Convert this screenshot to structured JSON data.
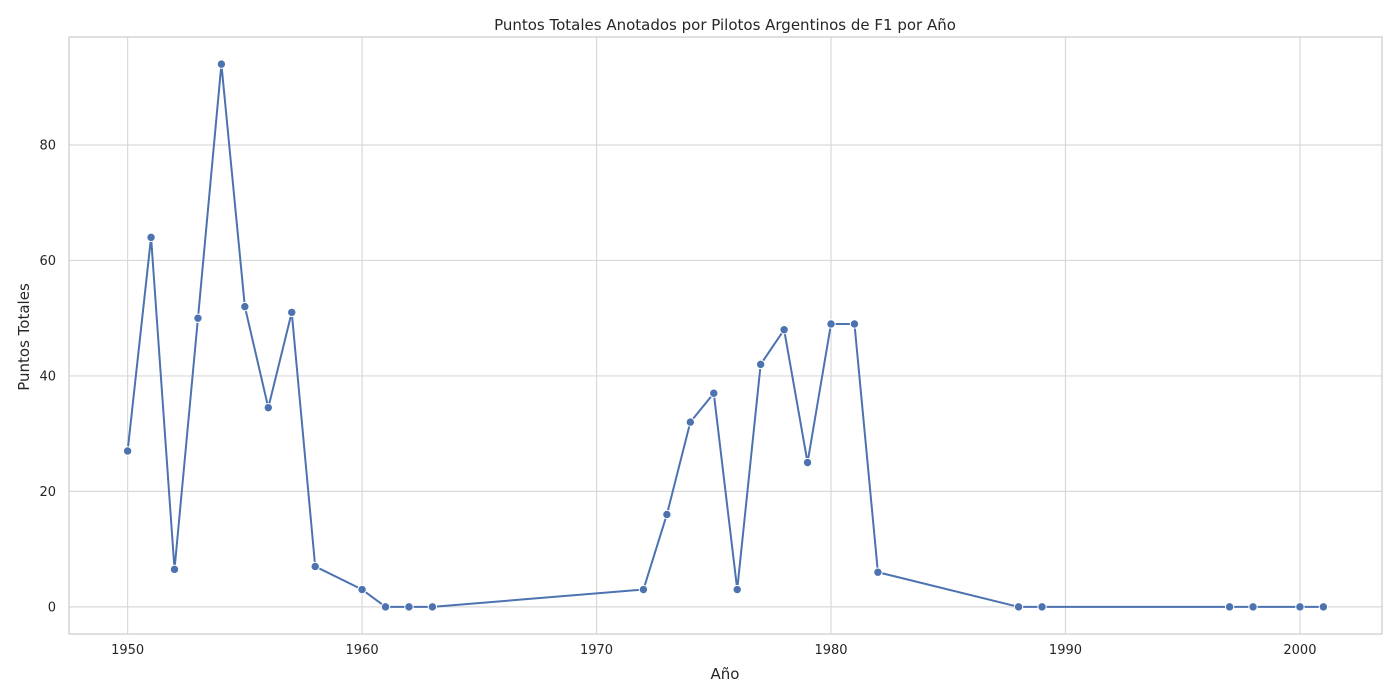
{
  "chart_data": {
    "type": "line",
    "title": "Puntos Totales Anotados por Pilotos Argentinos de F1 por Año",
    "xlabel": "Año",
    "ylabel": "Puntos Totales",
    "xlim": [
      1947.5,
      2003.5
    ],
    "ylim": [
      -4.7,
      98.7
    ],
    "xticks": [
      1950,
      1960,
      1970,
      1980,
      1990,
      2000
    ],
    "yticks": [
      0,
      20,
      40,
      60,
      80
    ],
    "grid": true,
    "series": [
      {
        "color": "#4c72b0",
        "x": [
          1950,
          1951,
          1952,
          1953,
          1954,
          1955,
          1956,
          1957,
          1958,
          1960,
          1961,
          1962,
          1963,
          1972,
          1973,
          1974,
          1975,
          1976,
          1977,
          1978,
          1979,
          1980,
          1981,
          1982,
          1988,
          1989,
          1997,
          1998,
          2000,
          2001
        ],
        "values": [
          27,
          64,
          6.5,
          50,
          94,
          52,
          34.5,
          51,
          7,
          3,
          0,
          0,
          0,
          3,
          16,
          32,
          37,
          3,
          42,
          48,
          25,
          49,
          49,
          6,
          0,
          0,
          0,
          0,
          0,
          0
        ]
      }
    ]
  },
  "colors": {
    "line": "#4c72b0",
    "grid": "#d9d9d9",
    "frame": "#cccccc",
    "text": "#262626"
  }
}
